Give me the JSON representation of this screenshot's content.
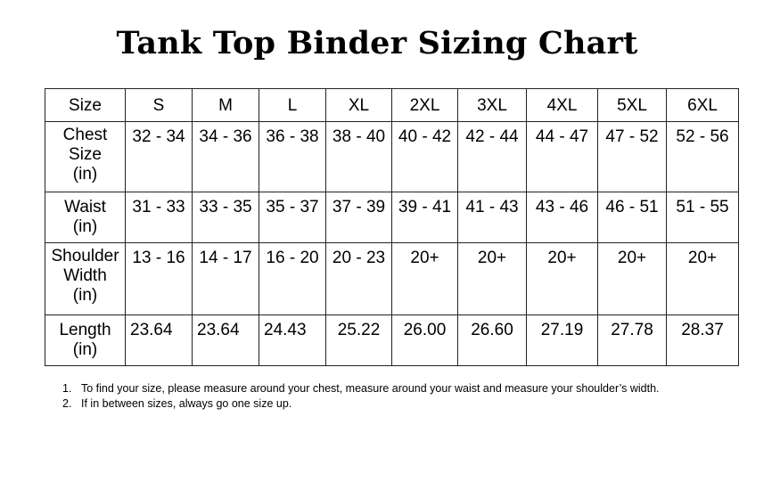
{
  "title": "Tank Top Binder Sizing Chart",
  "table": {
    "header": {
      "label": "Size",
      "sizes": [
        "S",
        "M",
        "L",
        "XL",
        "2XL",
        "3XL",
        "4XL",
        "5XL",
        "6XL"
      ]
    },
    "rows": [
      {
        "label_lines": [
          "Chest",
          "Size",
          "(in)"
        ],
        "values": [
          "32 - 34",
          "34 - 36",
          "36 - 38",
          "38 - 40",
          "40 - 42",
          "42 - 44",
          "44 - 47",
          "47 - 52",
          "52 - 56"
        ]
      },
      {
        "label_lines": [
          "Waist",
          "(in)"
        ],
        "values": [
          "31 - 33",
          "33 - 35",
          "35 - 37",
          "37 - 39",
          "39 - 41",
          "41 - 43",
          "43 - 46",
          "46 - 51",
          "51 - 55"
        ]
      },
      {
        "label_lines": [
          "Shoulder",
          "Width",
          "(in)"
        ],
        "values": [
          "13 - 16",
          "14 - 17",
          "16 - 20",
          "20 - 23",
          "20+",
          "20+",
          "20+",
          "20+",
          "20+"
        ]
      },
      {
        "label_lines": [
          "Length",
          "(in)"
        ],
        "values": [
          "23.64",
          "23.64",
          "24.43",
          "25.22",
          "26.00",
          "26.60",
          "27.19",
          "27.78",
          "28.37"
        ]
      }
    ]
  },
  "notes": [
    {
      "number": "1.",
      "text": "To find your size, please measure around your chest, measure around your waist and measure your shoulder’s width."
    },
    {
      "number": "2.",
      "text": "If in between sizes, always go one size up."
    }
  ]
}
